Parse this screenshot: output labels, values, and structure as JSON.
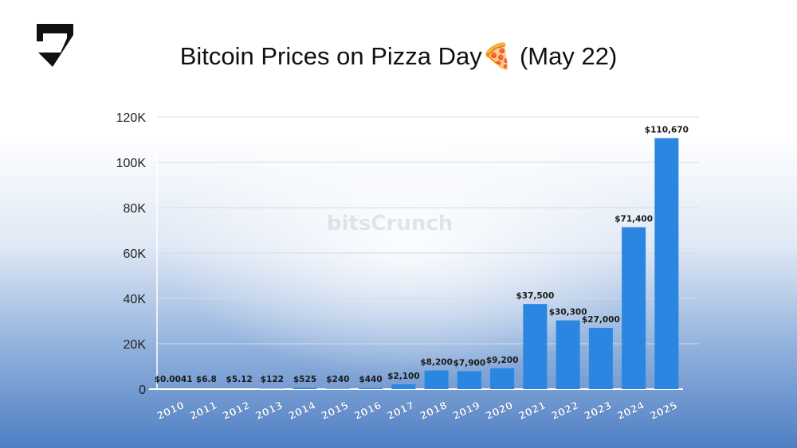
{
  "title": "Bitcoin Prices on Pizza Day🍕 (May 22)",
  "watermark": "bitsCrunch",
  "logo": "bitsCrunch",
  "colors": {
    "bar": "#2a86e0",
    "axis": "#ffffff"
  },
  "chart_data": {
    "type": "bar",
    "title": "Bitcoin Prices on Pizza Day🍕 (May 22)",
    "categories": [
      "2010",
      "2011",
      "2012",
      "2013",
      "2014",
      "2015",
      "2016",
      "2017",
      "2018",
      "2019",
      "2020",
      "2021",
      "2022",
      "2023",
      "2024",
      "2025"
    ],
    "values": [
      0.0041,
      6.8,
      5.12,
      122,
      525,
      240,
      440,
      2100,
      8200,
      7900,
      9200,
      37500,
      30300,
      27000,
      71400,
      110670
    ],
    "data_labels": [
      "$0.0041",
      "$6.8",
      "$5.12",
      "$122",
      "$525",
      "$240",
      "$440",
      "$2,100",
      "$8,200",
      "$7,900",
      "$9,200",
      "$37,500",
      "$30,300",
      "$27,000",
      "$71,400",
      "$110,670"
    ],
    "yticks": [
      "0",
      "20K",
      "40K",
      "60K",
      "80K",
      "100K",
      "120K"
    ],
    "ylim": [
      0,
      120000
    ],
    "grid": true,
    "xlabel": "",
    "ylabel": ""
  }
}
